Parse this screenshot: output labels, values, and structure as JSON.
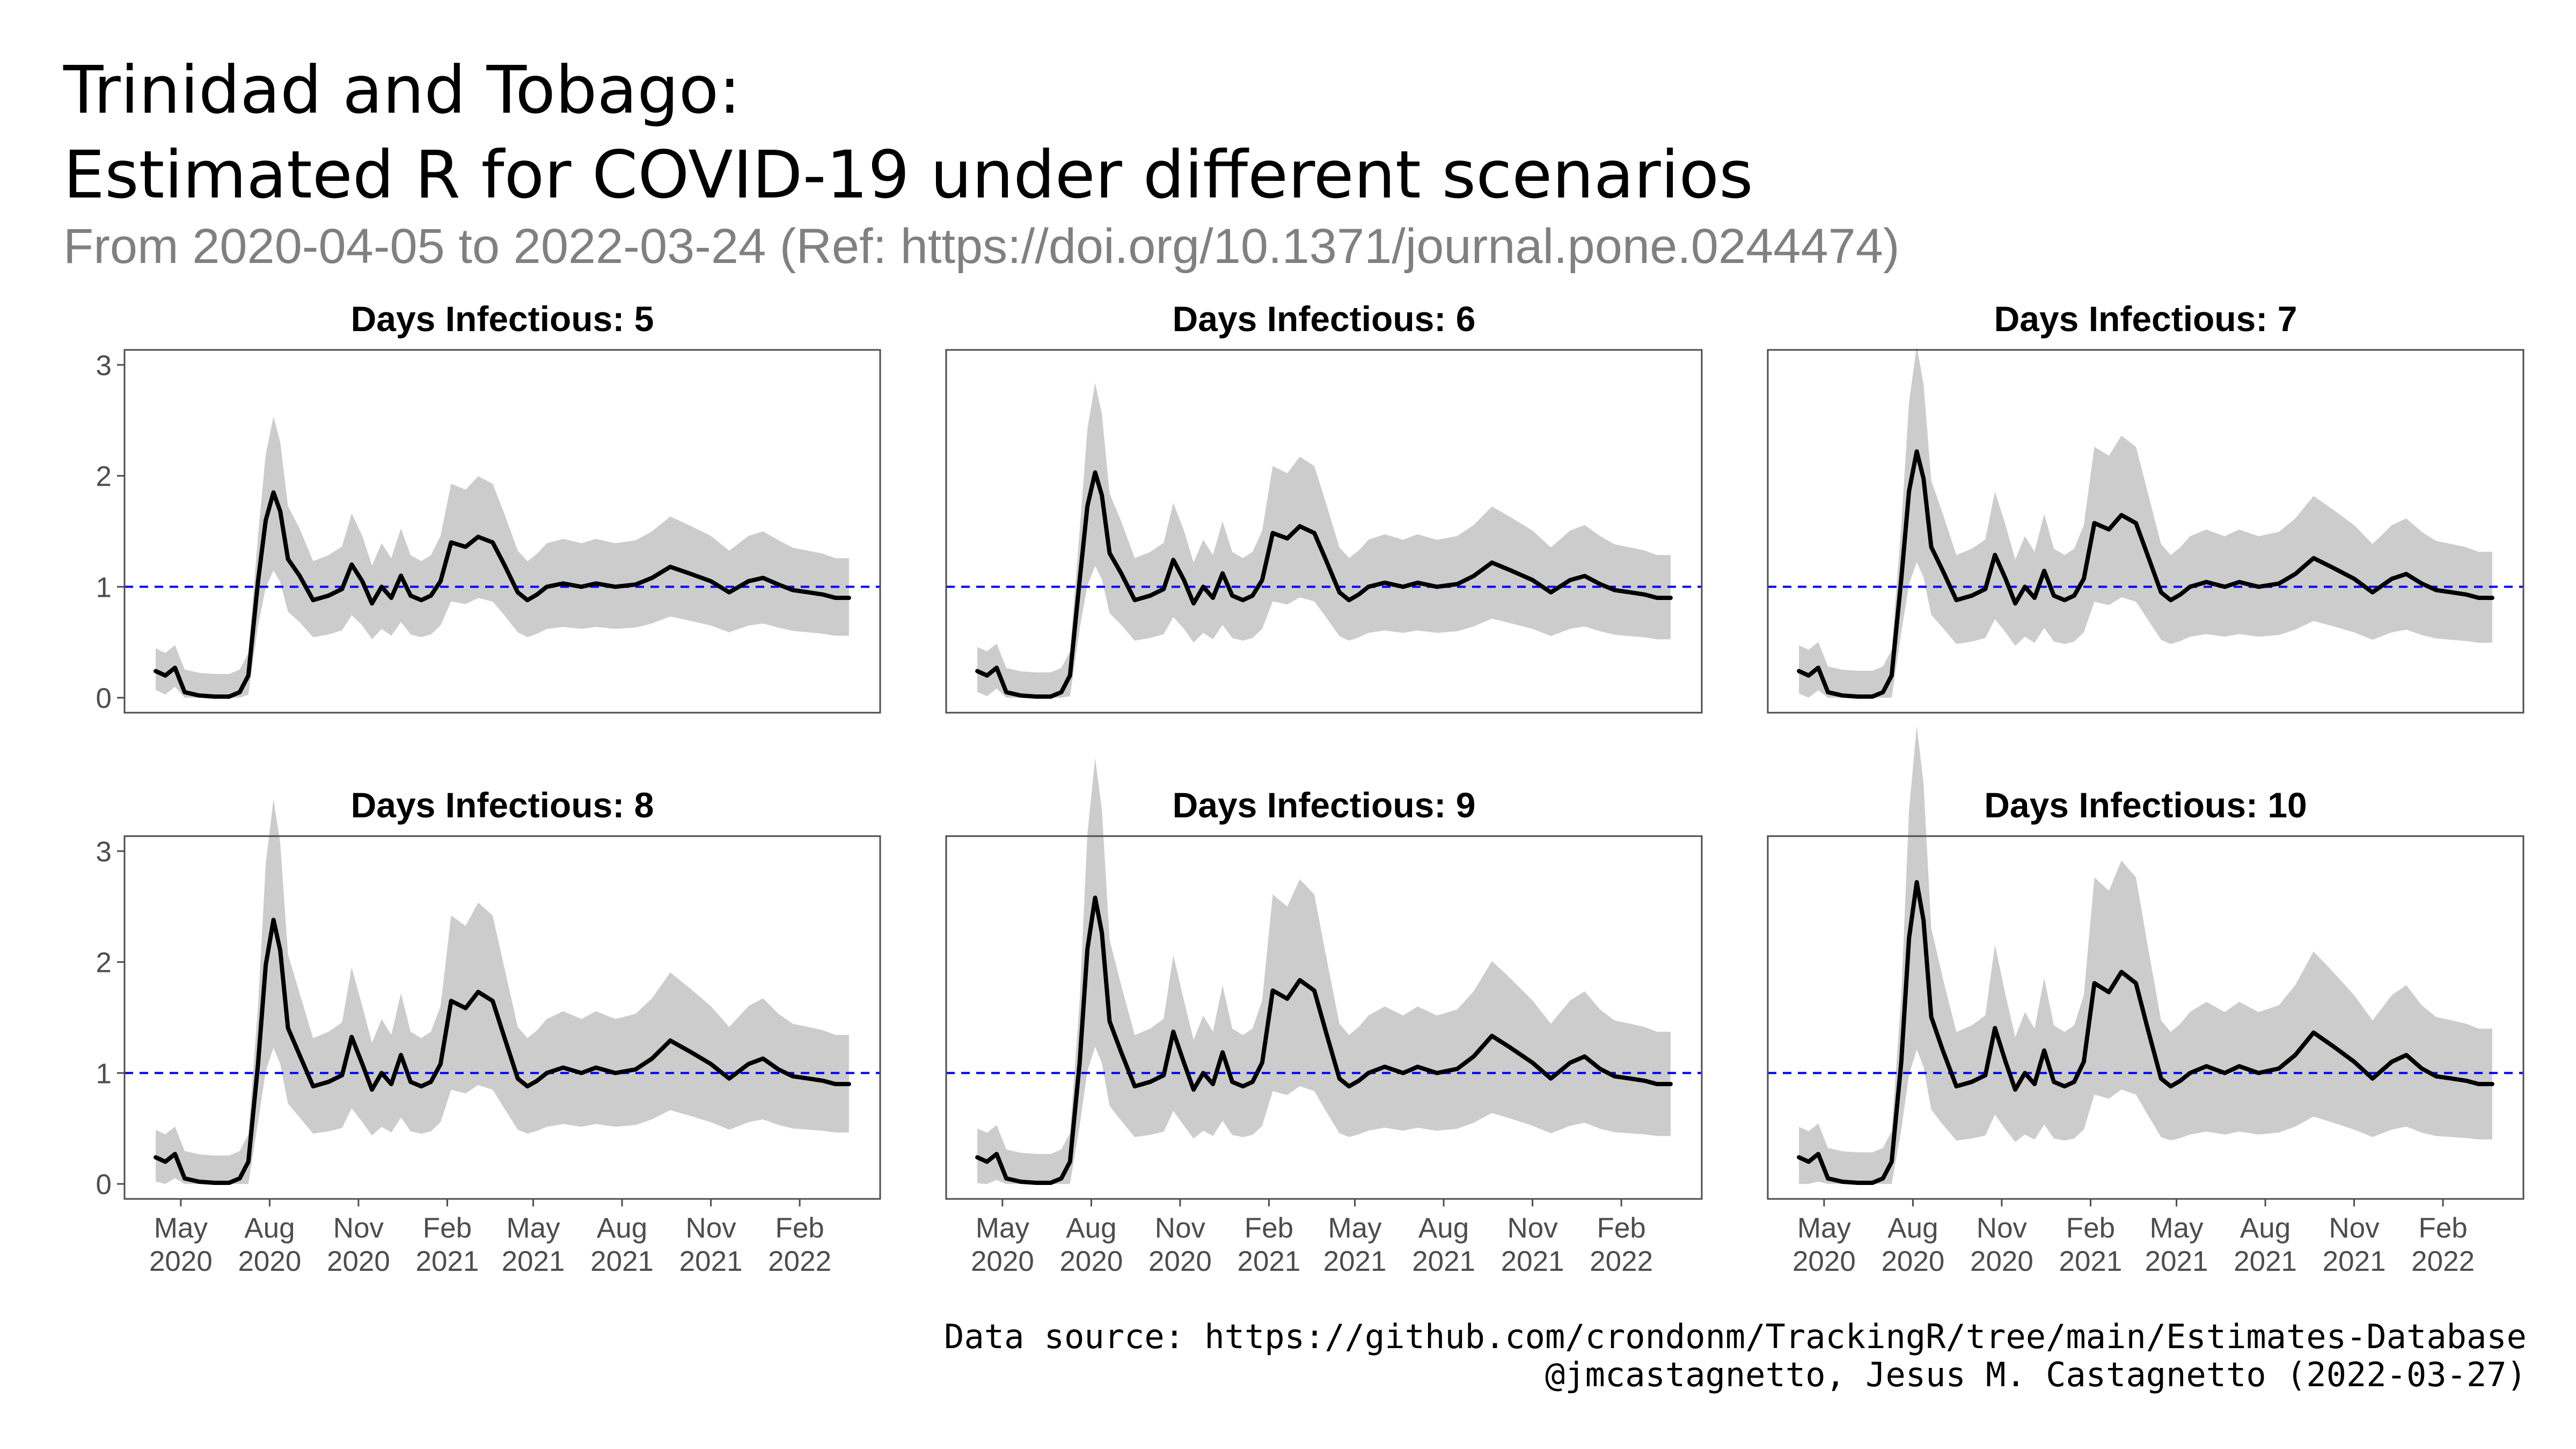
{
  "title_line1": "Trinidad and Tobago:",
  "title_line2": "Estimated R for COVID-19 under different scenarios",
  "subtitle": "From 2020-04-05 to 2022-03-24 (Ref: https://doi.org/10.1371/journal.pone.0244474)",
  "caption_line1": "Data source: https://github.com/crondonm/TrackingR/tree/main/Estimates-Database",
  "caption_line2": "@jmcastagnetto, Jesus M. Castagnetto (2022-03-27)",
  "colors": {
    "line": "#000000",
    "ribbon": "#cccccc",
    "reference": "#0000ff",
    "panel_border": "#4d4d4d",
    "tick_text": "#4d4d4d"
  },
  "chart_data": {
    "type": "line",
    "layout": "facet grid 2x3",
    "ylim": [
      0,
      3
    ],
    "y_ticks": [
      0,
      1,
      2,
      3
    ],
    "xlim": [
      "2020-04-05",
      "2022-03-24"
    ],
    "x_ticks": [
      {
        "date": "2020-05-01",
        "label": "May\n2020"
      },
      {
        "date": "2020-08-01",
        "label": "Aug\n2020"
      },
      {
        "date": "2020-11-01",
        "label": "Nov\n2020"
      },
      {
        "date": "2021-02-01",
        "label": "Feb\n2021"
      },
      {
        "date": "2021-05-01",
        "label": "May\n2021"
      },
      {
        "date": "2021-08-01",
        "label": "Aug\n2021"
      },
      {
        "date": "2021-11-01",
        "label": "Nov\n2021"
      },
      {
        "date": "2022-02-01",
        "label": "Feb\n2022"
      }
    ],
    "reference_line": {
      "y": 1,
      "style": "dashed"
    },
    "base_series": {
      "x": [
        "2020-04-05",
        "2020-04-15",
        "2020-04-25",
        "2020-05-05",
        "2020-05-20",
        "2020-06-05",
        "2020-06-20",
        "2020-07-01",
        "2020-07-10",
        "2020-07-20",
        "2020-07-28",
        "2020-08-05",
        "2020-08-12",
        "2020-08-20",
        "2020-09-01",
        "2020-09-15",
        "2020-10-01",
        "2020-10-15",
        "2020-10-25",
        "2020-11-05",
        "2020-11-15",
        "2020-11-25",
        "2020-12-05",
        "2020-12-15",
        "2020-12-25",
        "2021-01-05",
        "2021-01-15",
        "2021-01-25",
        "2021-02-05",
        "2021-02-20",
        "2021-03-05",
        "2021-03-20",
        "2021-04-01",
        "2021-04-15",
        "2021-04-25",
        "2021-05-05",
        "2021-05-15",
        "2021-06-01",
        "2021-06-20",
        "2021-07-05",
        "2021-07-25",
        "2021-08-15",
        "2021-09-01",
        "2021-09-20",
        "2021-10-10",
        "2021-11-01",
        "2021-11-20",
        "2021-12-10",
        "2021-12-25",
        "2022-01-10",
        "2022-01-25",
        "2022-02-10",
        "2022-02-25",
        "2022-03-10",
        "2022-03-24"
      ],
      "y": [
        0.24,
        0.2,
        0.27,
        0.05,
        0.02,
        0.01,
        0.01,
        0.05,
        0.2,
        1.05,
        1.6,
        1.85,
        1.68,
        1.25,
        1.1,
        0.88,
        0.92,
        0.98,
        1.2,
        1.05,
        0.85,
        1.0,
        0.9,
        1.1,
        0.92,
        0.88,
        0.92,
        1.05,
        1.4,
        1.36,
        1.45,
        1.4,
        1.2,
        0.95,
        0.88,
        0.93,
        1.0,
        1.03,
        1.0,
        1.03,
        1.0,
        1.02,
        1.08,
        1.18,
        1.12,
        1.05,
        0.95,
        1.05,
        1.08,
        1.02,
        0.97,
        0.95,
        0.93,
        0.9,
        0.9
      ]
    },
    "panels": [
      {
        "title": "Days Infectious: 5",
        "days": 5,
        "peak": 1.85
      },
      {
        "title": "Days Infectious: 6",
        "days": 6,
        "peak": 2.03
      },
      {
        "title": "Days Infectious: 7",
        "days": 7,
        "peak": 2.22
      },
      {
        "title": "Days Infectious: 8",
        "days": 8,
        "peak": 2.38
      },
      {
        "title": "Days Infectious: 9",
        "days": 9,
        "peak": 2.58
      },
      {
        "title": "Days Infectious: 10",
        "days": 10,
        "peak": 2.72
      }
    ]
  }
}
